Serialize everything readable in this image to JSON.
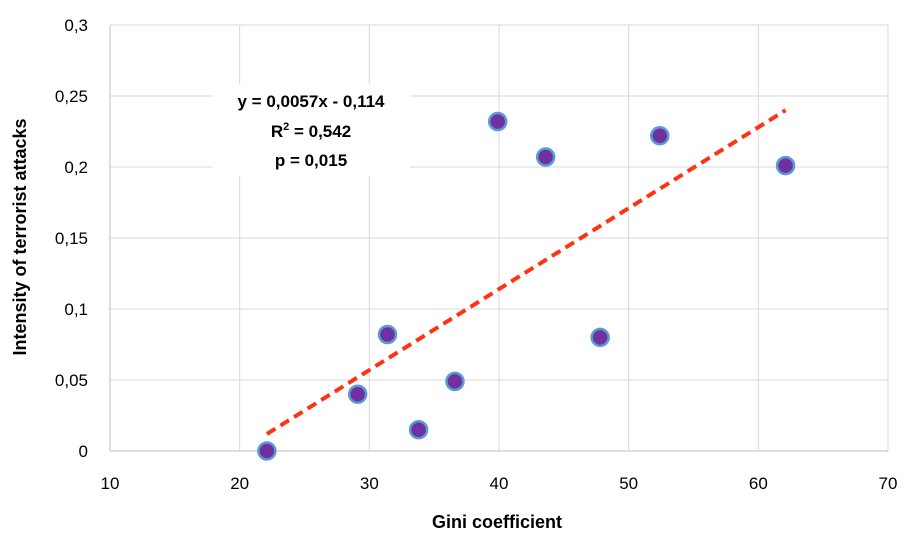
{
  "chart_data": {
    "type": "scatter",
    "xlabel": "Gini coefficient",
    "ylabel": "Intensity of terrorist attacks",
    "xlim": [
      10,
      70
    ],
    "ylim": [
      0,
      0.3
    ],
    "x_ticks": [
      "10",
      "20",
      "30",
      "40",
      "50",
      "60",
      "70"
    ],
    "y_ticks": [
      "0",
      "0,05",
      "0,1",
      "0,15",
      "0,2",
      "0,25",
      "0,3"
    ],
    "grid": "vertical and horizontal",
    "points": [
      {
        "x": 22.1,
        "y": 0.0
      },
      {
        "x": 29.1,
        "y": 0.04
      },
      {
        "x": 31.4,
        "y": 0.082
      },
      {
        "x": 33.8,
        "y": 0.015
      },
      {
        "x": 36.6,
        "y": 0.049
      },
      {
        "x": 39.9,
        "y": 0.232
      },
      {
        "x": 43.6,
        "y": 0.207
      },
      {
        "x": 47.8,
        "y": 0.08
      },
      {
        "x": 52.4,
        "y": 0.222
      },
      {
        "x": 62.1,
        "y": 0.201
      }
    ],
    "trendline": {
      "slope": 0.0057,
      "intercept": -0.114,
      "x_range": [
        22.1,
        62.1
      ],
      "style": "dashed",
      "color": "#ff3311"
    },
    "annotation": {
      "line1": "y = 0,0057x - 0,114",
      "line2_prefix": "R",
      "line2_sup": "2",
      "line2_suffix": " = 0,542",
      "line3": "p = 0,015"
    },
    "marker_fill": "#7030a0",
    "marker_edge": "#5b9bd5"
  }
}
